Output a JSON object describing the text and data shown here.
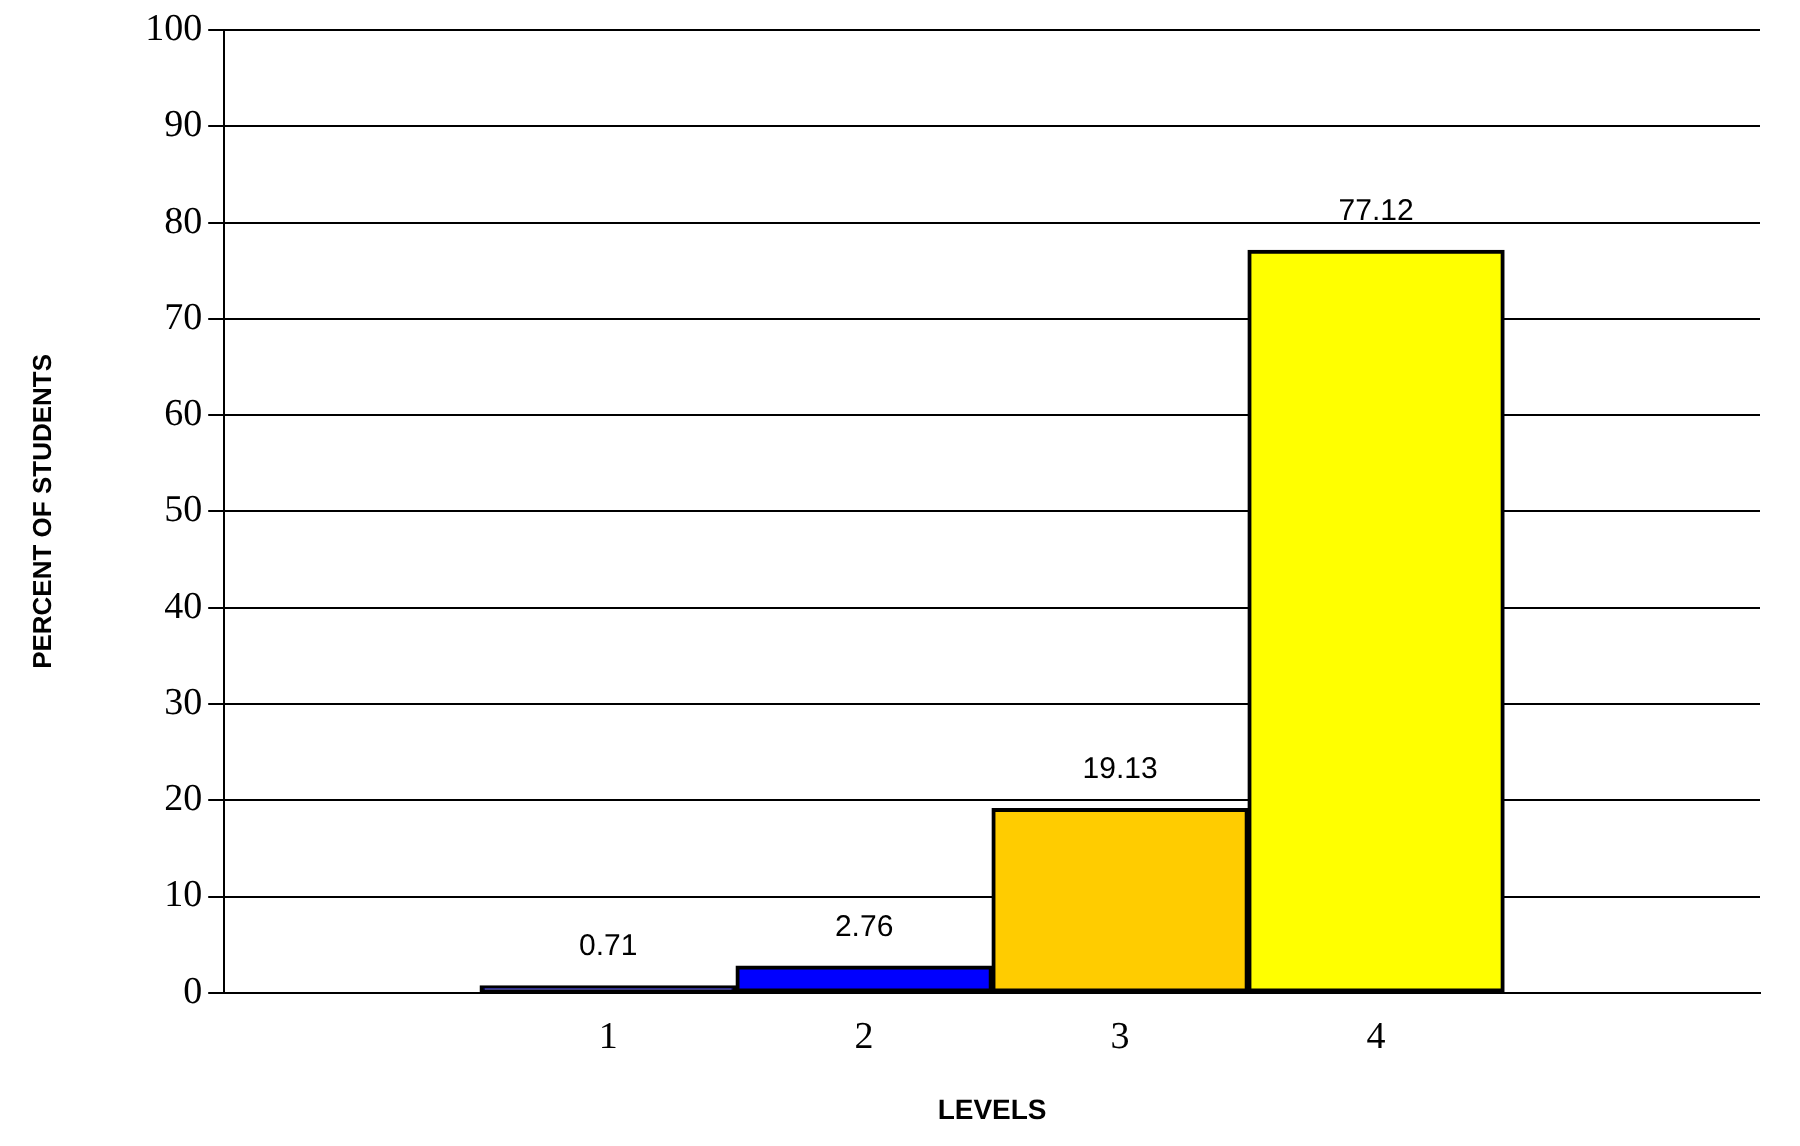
{
  "chart_data": {
    "type": "bar",
    "xlabel": "LEVELS",
    "ylabel": "PERCENT OF STUDENTS",
    "categories": [
      null,
      "1",
      "2",
      "3",
      "4",
      null
    ],
    "values": [
      null,
      0.71,
      2.76,
      19.13,
      77.12,
      null
    ],
    "colors": [
      "#000000",
      "#000080",
      "#0000ff",
      "#ffcc00",
      "#ffff00",
      "#000000"
    ],
    "ylim": [
      0,
      100
    ],
    "yticks": [
      0,
      10,
      20,
      30,
      40,
      50,
      60,
      70,
      80,
      90,
      100
    ],
    "grid": "y",
    "legend": false,
    "data_labels": true
  }
}
